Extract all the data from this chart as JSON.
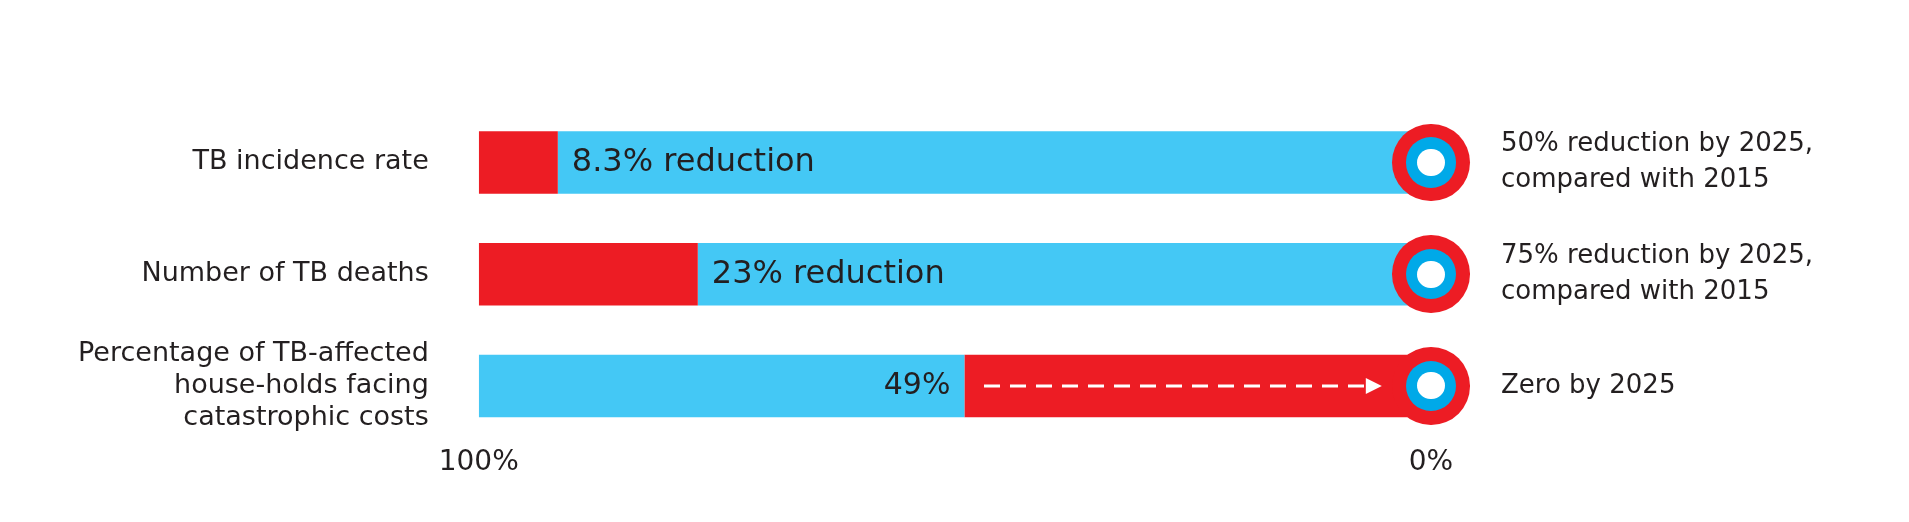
{
  "chart_data": {
    "type": "bar",
    "orientation": "horizontal",
    "categories": [
      "TB incidence rate",
      "Number of TB deaths",
      "Percentage of TB-affected house-holds facing catastrophic costs"
    ],
    "series": [
      {
        "colors": [
          "#ed1c24",
          "#ed1c24",
          "#44c8f5"
        ],
        "base": [
          91.7,
          77,
          49
        ],
        "values": [
          8.3,
          23,
          51
        ],
        "value_labels": [
          "8.3% reduction",
          "23% reduction",
          null
        ]
      },
      {
        "colors": [
          "#44c8f5",
          "#44c8f5",
          "#ed1c24"
        ],
        "base": [
          0,
          0,
          0
        ],
        "values": [
          91.7,
          77,
          49
        ],
        "value_labels": [
          null,
          null,
          "49%"
        ]
      }
    ],
    "xlim": [
      100,
      0
    ],
    "xticks": [
      {
        "value": 100,
        "label": "100%"
      },
      {
        "value": 0,
        "label": "0%"
      }
    ],
    "grid": false,
    "legend": false,
    "annotations": [
      "50% reduction by 2025, compared with 2015",
      "75% reduction by 2025, compared with 2015",
      "Zero by 2025"
    ]
  }
}
